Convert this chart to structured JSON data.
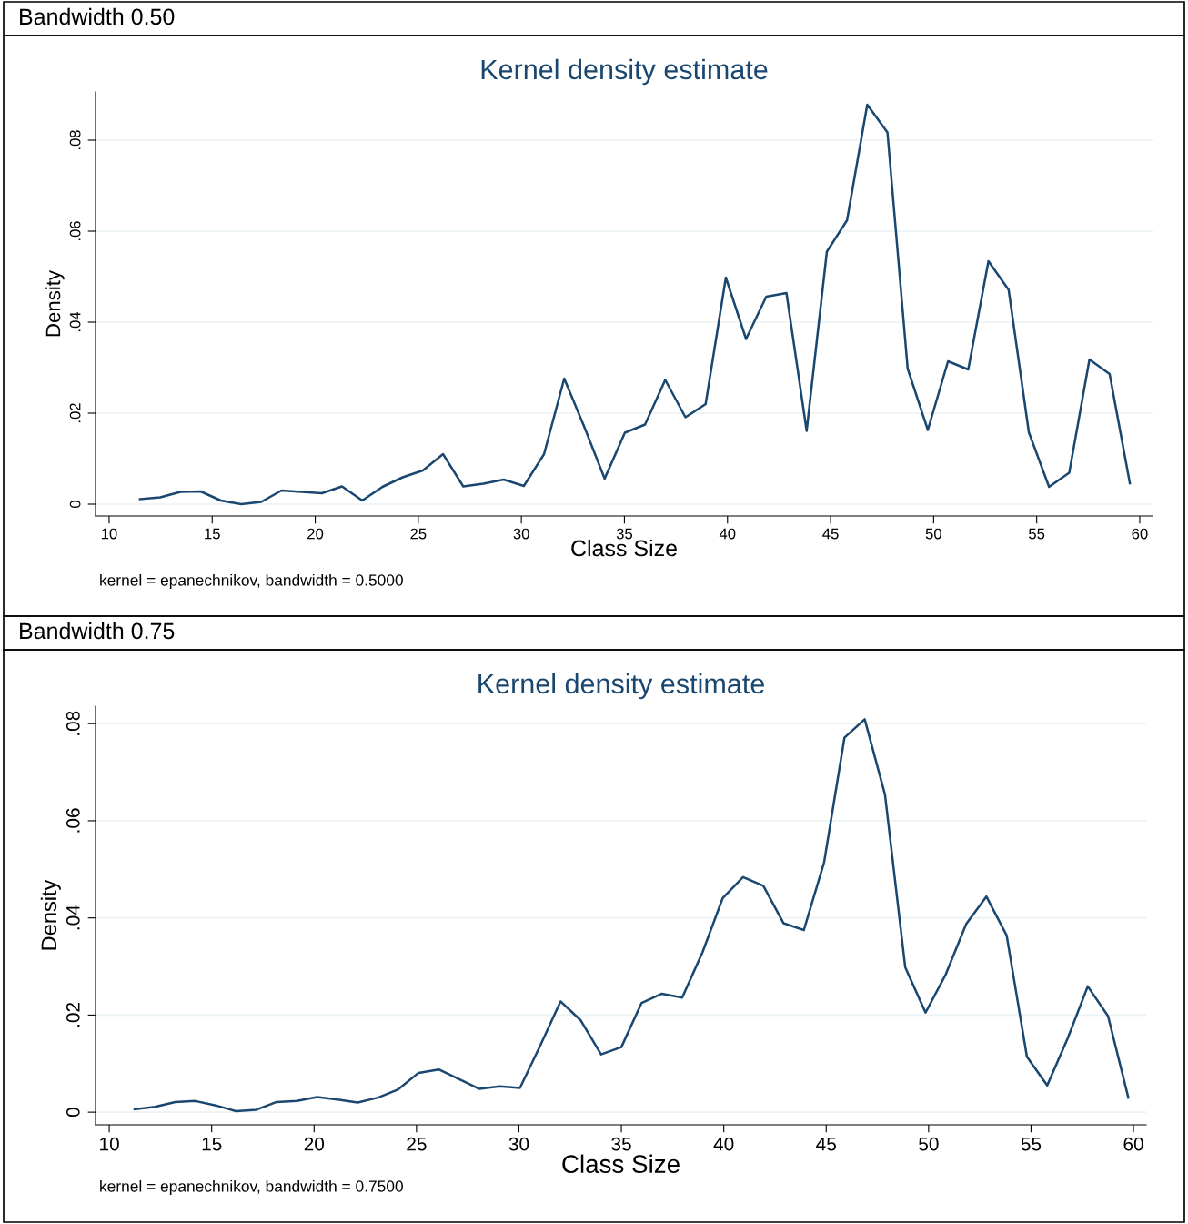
{
  "chart_data": [
    {
      "type": "line",
      "title": "Kernel density estimate",
      "xlabel": "Class Size",
      "ylabel": "Density",
      "annotations": [
        "Bandwidth 0.50",
        "kernel = epanechnikov, bandwidth = 0.5000"
      ],
      "x": [
        11.5,
        12.48,
        13.46,
        14.44,
        15.42,
        16.4,
        17.38,
        18.36,
        19.34,
        20.32,
        21.3,
        22.28,
        23.26,
        24.24,
        25.22,
        26.2,
        27.18,
        28.16,
        29.14,
        30.12,
        31.1,
        32.08,
        33.06,
        34.04,
        35.02,
        36.0,
        36.98,
        37.96,
        38.94,
        39.92,
        40.9,
        41.88,
        42.86,
        43.84,
        44.82,
        45.8,
        46.78,
        47.76,
        48.74,
        49.72,
        50.7,
        51.68,
        52.66,
        53.64,
        54.62,
        55.6,
        56.58,
        57.56,
        58.54,
        59.52
      ],
      "series": [
        {
          "color": "#1a476f",
          "values": [
            0.0011,
            0.0015,
            0.0027,
            0.0028,
            0.0008,
            0.0,
            0.0005,
            0.003,
            0.0027,
            0.0024,
            0.0039,
            0.0008,
            0.0038,
            0.0059,
            0.0074,
            0.011,
            0.0039,
            0.0045,
            0.0054,
            0.004,
            0.011,
            0.0276,
            0.0169,
            0.0056,
            0.0157,
            0.0175,
            0.0273,
            0.0191,
            0.022,
            0.0498,
            0.0363,
            0.0456,
            0.0464,
            0.0161,
            0.0555,
            0.0624,
            0.0878,
            0.0817,
            0.0298,
            0.0163,
            0.0314,
            0.0296,
            0.0534,
            0.0471,
            0.0158,
            0.0038,
            0.0069,
            0.0318,
            0.0286,
            0.0046
          ]
        }
      ],
      "xlim": [
        9.34,
        60.62
      ],
      "xticks": [
        10,
        15,
        20,
        25,
        30,
        35,
        40,
        45,
        50,
        55,
        60
      ],
      "ylim": [
        -0.0026,
        0.0906
      ],
      "yticks": [
        0,
        {
          "value": 0.02,
          "label": ".02"
        },
        {
          "value": 0.04,
          "label": ".04"
        },
        {
          "value": 0.06,
          "label": ".06"
        },
        {
          "value": 0.08,
          "label": ".08"
        }
      ],
      "grid": "y",
      "legend": false,
      "line_style": "solid"
    },
    {
      "type": "line",
      "title": "Kernel density estimate",
      "xlabel": "Class Size",
      "ylabel": "Density",
      "annotations": [
        "Bandwidth 0.75",
        "kernel = epanechnikov, bandwidth = 0.7500"
      ],
      "x": [
        11.24,
        12.23,
        13.22,
        14.21,
        15.2,
        16.19,
        17.18,
        18.17,
        19.16,
        20.15,
        21.14,
        22.13,
        23.12,
        24.11,
        25.1,
        26.09,
        27.08,
        28.07,
        29.06,
        30.05,
        31.04,
        32.03,
        33.02,
        34.01,
        35.0,
        35.99,
        36.98,
        37.97,
        38.96,
        39.95,
        40.94,
        41.93,
        42.92,
        43.91,
        44.9,
        45.89,
        46.88,
        47.87,
        48.86,
        49.85,
        50.84,
        51.83,
        52.82,
        53.81,
        54.8,
        55.79,
        56.78,
        57.77,
        58.76,
        59.75
      ],
      "series": [
        {
          "color": "#1a476f",
          "values": [
            0.0006,
            0.0011,
            0.0021,
            0.0023,
            0.0014,
            0.0002,
            0.0005,
            0.0021,
            0.0023,
            0.0031,
            0.0026,
            0.002,
            0.003,
            0.0047,
            0.0081,
            0.0088,
            0.0068,
            0.0048,
            0.0053,
            0.005,
            0.0137,
            0.0228,
            0.0189,
            0.0119,
            0.0134,
            0.0225,
            0.0244,
            0.0236,
            0.0329,
            0.0441,
            0.0484,
            0.0466,
            0.0389,
            0.0375,
            0.0515,
            0.0771,
            0.0809,
            0.0654,
            0.0298,
            0.0205,
            0.0284,
            0.0387,
            0.0444,
            0.0364,
            0.0114,
            0.0055,
            0.0151,
            0.0259,
            0.0198,
            0.003
          ]
        }
      ],
      "xlim": [
        9.33,
        60.62
      ],
      "xticks": [
        10,
        15,
        20,
        25,
        30,
        35,
        40,
        45,
        50,
        55,
        60
      ],
      "ylim": [
        -0.0026,
        0.0836
      ],
      "yticks": [
        0,
        {
          "value": 0.02,
          "label": ".02"
        },
        {
          "value": 0.04,
          "label": ".04"
        },
        {
          "value": 0.06,
          "label": ".06"
        },
        {
          "value": 0.08,
          "label": ".08"
        }
      ],
      "grid": "y",
      "legend": false,
      "line_style": "solid"
    }
  ]
}
